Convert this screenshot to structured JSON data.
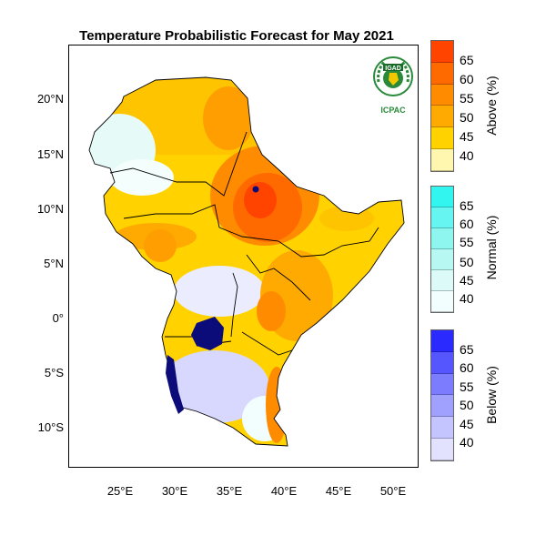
{
  "title": "Temperature Probabilistic Forecast for May 2021",
  "lat_labels": [
    "20°N",
    "15°N",
    "10°N",
    "5°N",
    "0°",
    "5°S",
    "10°S"
  ],
  "lon_labels": [
    "25°E",
    "30°E",
    "35°E",
    "40°E",
    "45°E",
    "50°E"
  ],
  "legends": [
    {
      "label": "Above (%)",
      "ticks": [
        "65",
        "60",
        "55",
        "50",
        "45",
        "40"
      ],
      "colors": [
        "#ff4400",
        "#ff6a00",
        "#ff8c00",
        "#ffaa00",
        "#ffd200",
        "#fff7b0"
      ]
    },
    {
      "label": "Normal (%)",
      "ticks": [
        "65",
        "60",
        "55",
        "50",
        "45",
        "40"
      ],
      "colors": [
        "#33f5f0",
        "#66f5f0",
        "#8ff5ef",
        "#b8f8f2",
        "#dcfbf8",
        "#f1fefd"
      ]
    },
    {
      "label": "Below (%)",
      "ticks": [
        "65",
        "60",
        "55",
        "50",
        "45",
        "40"
      ],
      "colors": [
        "#2a2aff",
        "#5656ff",
        "#7c7cff",
        "#a0a0ff",
        "#c4c4ff",
        "#e2e2ff"
      ]
    }
  ],
  "logo": {
    "top_text": "IGAD",
    "bottom_text": "ICPAC"
  },
  "colors": {
    "lakes": "#0b0b7a",
    "border": "#000000"
  }
}
